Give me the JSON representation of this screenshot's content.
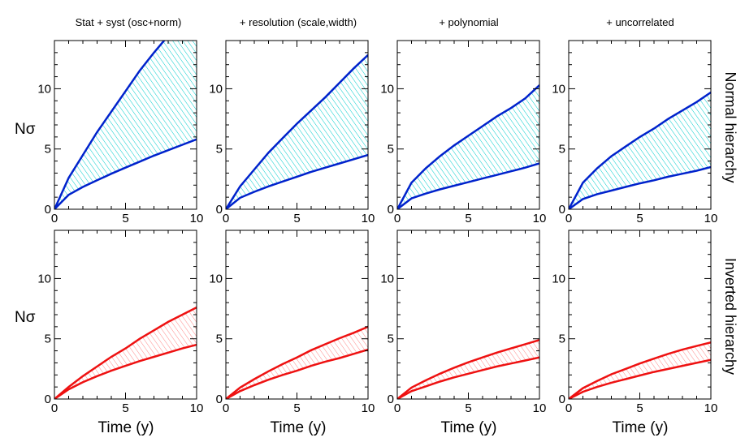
{
  "chart_data": {
    "type": "area",
    "column_titles": [
      "Stat + syst (osc+norm)",
      "+ resolution (scale,width)",
      "+ polynomial",
      "+ uncorrelated"
    ],
    "row_labels": [
      "Normal hierarchy",
      "Inverted hierarchy"
    ],
    "ylabel": "Nσ",
    "xlabel": "Time (y)",
    "xlim": [
      0,
      10
    ],
    "ylim": [
      0,
      14
    ],
    "xticks": [
      0,
      5,
      10
    ],
    "yticks": [
      0,
      5,
      10
    ],
    "x": [
      0,
      1,
      2,
      3,
      4,
      5,
      6,
      7,
      8,
      9,
      10
    ],
    "panels": [
      {
        "row": "Normal hierarchy",
        "column": "Stat + syst (osc+norm)",
        "color": "#0022cc",
        "hatch_color": "#00cccc",
        "upper": [
          0,
          2.6,
          4.5,
          6.4,
          8.1,
          9.8,
          11.5,
          13.0,
          14.4,
          15.9,
          17.3
        ],
        "lower": [
          0,
          1.2,
          1.85,
          2.4,
          2.95,
          3.45,
          3.95,
          4.45,
          4.9,
          5.35,
          5.8
        ]
      },
      {
        "row": "Normal hierarchy",
        "column": "+ resolution (scale,width)",
        "color": "#0022cc",
        "hatch_color": "#00cccc",
        "upper": [
          0,
          1.9,
          3.3,
          4.7,
          5.9,
          7.1,
          8.2,
          9.3,
          10.5,
          11.7,
          12.8
        ],
        "lower": [
          0,
          0.95,
          1.45,
          1.9,
          2.3,
          2.7,
          3.1,
          3.45,
          3.8,
          4.15,
          4.5
        ]
      },
      {
        "row": "Normal hierarchy",
        "column": "+ polynomial",
        "color": "#0022cc",
        "hatch_color": "#00cccc",
        "upper": [
          0,
          2.2,
          3.4,
          4.4,
          5.3,
          6.1,
          6.9,
          7.7,
          8.4,
          9.2,
          10.3
        ],
        "lower": [
          0,
          0.9,
          1.3,
          1.65,
          1.95,
          2.25,
          2.55,
          2.85,
          3.15,
          3.45,
          3.8
        ]
      },
      {
        "row": "Normal hierarchy",
        "column": "+ uncorrelated",
        "color": "#0022cc",
        "hatch_color": "#00cccc",
        "upper": [
          0,
          2.2,
          3.4,
          4.4,
          5.2,
          6.0,
          6.7,
          7.5,
          8.2,
          8.9,
          9.7
        ],
        "lower": [
          0,
          0.85,
          1.25,
          1.55,
          1.85,
          2.15,
          2.4,
          2.7,
          2.95,
          3.2,
          3.5
        ]
      },
      {
        "row": "Inverted hierarchy",
        "column": "Stat + syst (osc+norm)",
        "color": "#ee1111",
        "hatch_color": "#ff8888",
        "upper": [
          0,
          1.0,
          1.9,
          2.7,
          3.5,
          4.2,
          5.0,
          5.7,
          6.4,
          7.0,
          7.6
        ],
        "lower": [
          0,
          0.8,
          1.4,
          1.9,
          2.35,
          2.75,
          3.15,
          3.5,
          3.85,
          4.2,
          4.5
        ]
      },
      {
        "row": "Inverted hierarchy",
        "column": "+ resolution (scale,width)",
        "color": "#ee1111",
        "hatch_color": "#ff8888",
        "upper": [
          0,
          0.95,
          1.65,
          2.3,
          2.9,
          3.45,
          4.05,
          4.55,
          5.05,
          5.5,
          6.0
        ],
        "lower": [
          0,
          0.65,
          1.15,
          1.6,
          2.0,
          2.35,
          2.75,
          3.1,
          3.4,
          3.75,
          4.1
        ]
      },
      {
        "row": "Inverted hierarchy",
        "column": "+ polynomial",
        "color": "#ee1111",
        "hatch_color": "#ff8888",
        "upper": [
          0,
          0.95,
          1.55,
          2.1,
          2.6,
          3.05,
          3.45,
          3.85,
          4.2,
          4.55,
          4.9
        ],
        "lower": [
          0,
          0.65,
          1.05,
          1.45,
          1.8,
          2.1,
          2.4,
          2.7,
          2.95,
          3.2,
          3.45
        ]
      },
      {
        "row": "Inverted hierarchy",
        "column": "+ uncorrelated",
        "color": "#ee1111",
        "hatch_color": "#ff8888",
        "upper": [
          0,
          0.9,
          1.5,
          2.05,
          2.5,
          2.95,
          3.35,
          3.75,
          4.1,
          4.4,
          4.7
        ],
        "lower": [
          0,
          0.6,
          1.0,
          1.35,
          1.65,
          1.95,
          2.25,
          2.5,
          2.75,
          3.0,
          3.25
        ]
      }
    ]
  }
}
